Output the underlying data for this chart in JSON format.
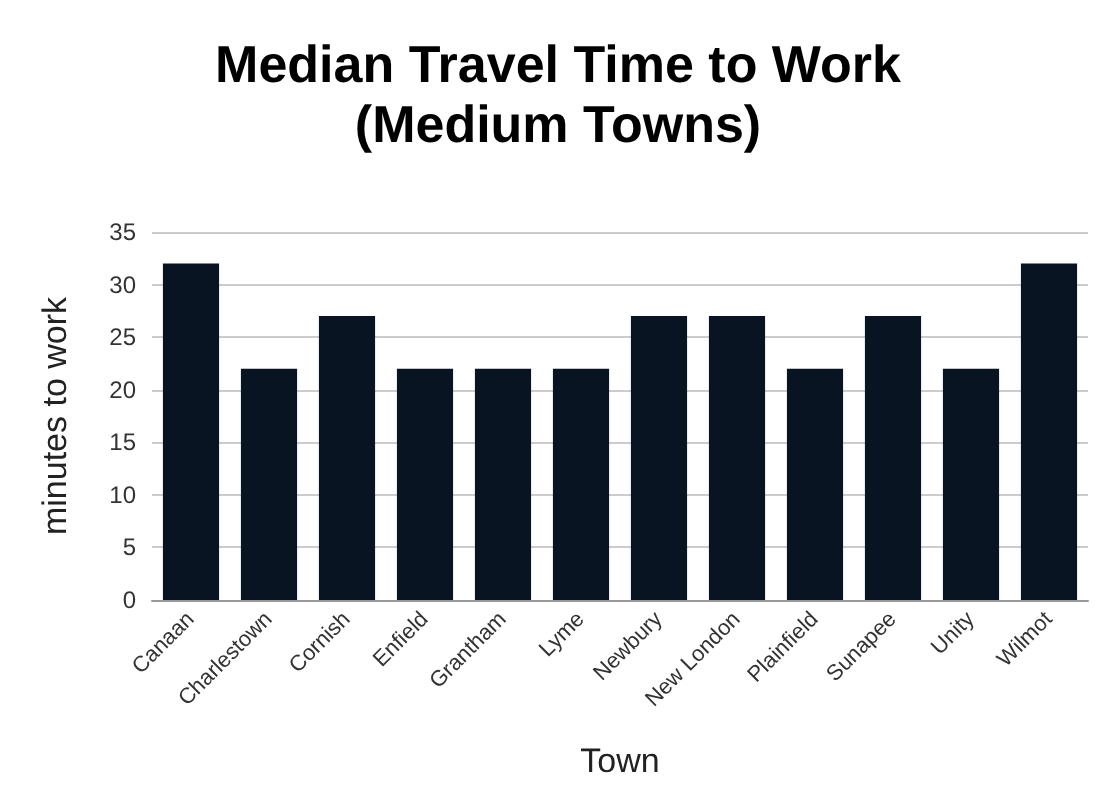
{
  "chart_data": {
    "type": "bar",
    "title": "Median Travel Time to Work\n(Medium Towns)",
    "xlabel": "Town",
    "ylabel": "minutes to work",
    "categories": [
      "Canaan",
      "Charlestown",
      "Cornish",
      "Enfield",
      "Grantham",
      "Lyme",
      "Newbury",
      "New London",
      "Plainfield",
      "Sunapee",
      "Unity",
      "Wilmot"
    ],
    "values": [
      32,
      22,
      27,
      22,
      22,
      22,
      27,
      27,
      22,
      27,
      22,
      32
    ],
    "color": "#081421",
    "ylim": [
      0,
      35
    ],
    "yticks": [
      0,
      5,
      10,
      15,
      20,
      25,
      30,
      35
    ],
    "grid": "y"
  }
}
